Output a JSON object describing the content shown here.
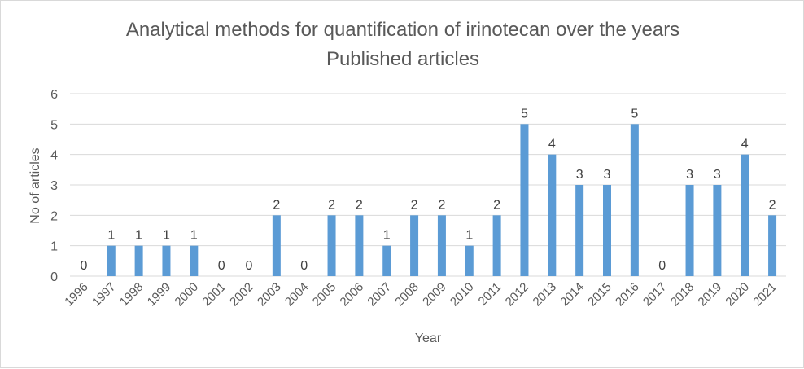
{
  "chart_data": {
    "type": "bar",
    "title": "Analytical methods for quantification of irinotecan over the years",
    "subtitle": "Published articles",
    "xlabel": "Year",
    "ylabel": "No of articles",
    "ylim": [
      0,
      6
    ],
    "yticks": [
      "0",
      "1",
      "2",
      "3",
      "4",
      "5",
      "6"
    ],
    "grid": true,
    "categories": [
      "1996",
      "1997",
      "1998",
      "1999",
      "2000",
      "2001",
      "2002",
      "2003",
      "2004",
      "2005",
      "2006",
      "2007",
      "2008",
      "2009",
      "2010",
      "2011",
      "2012",
      "2013",
      "2014",
      "2015",
      "2016",
      "2017",
      "2018",
      "2019",
      "2020",
      "2021"
    ],
    "values": [
      0,
      1,
      1,
      1,
      1,
      0,
      0,
      2,
      0,
      2,
      2,
      1,
      2,
      2,
      1,
      2,
      5,
      4,
      3,
      3,
      5,
      0,
      3,
      3,
      4,
      2
    ],
    "bar_color": "#5b9bd5"
  }
}
